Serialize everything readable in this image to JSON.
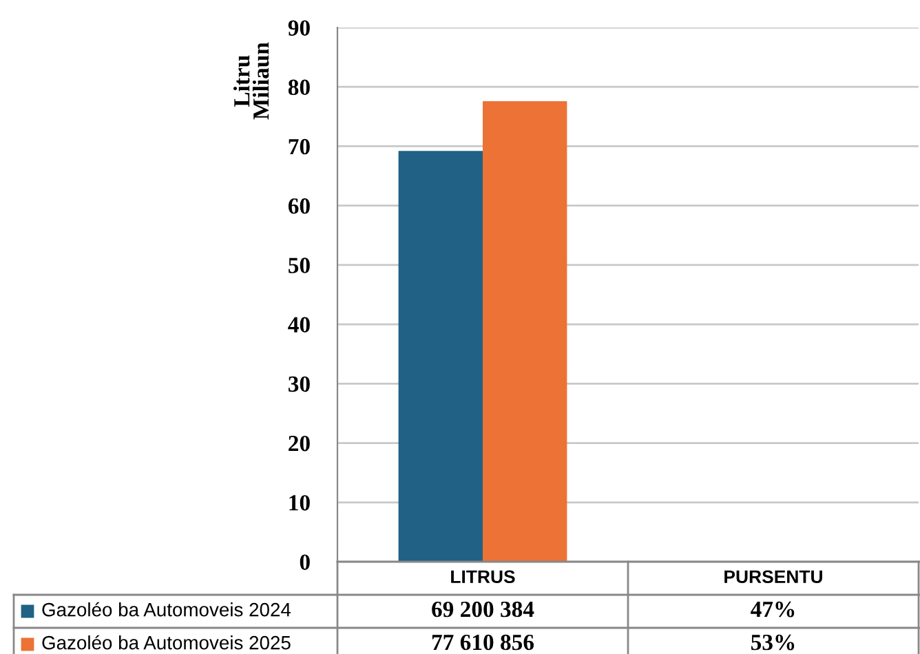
{
  "chart_data": {
    "type": "bar",
    "categories": [
      "LITRUS",
      "PURSENTU"
    ],
    "ylabel": "Litru\nMiliaun",
    "ylim": [
      0,
      90
    ],
    "yticks": [
      0,
      10,
      20,
      30,
      40,
      50,
      60,
      70,
      80,
      90
    ],
    "grid": "y",
    "legend": "bottom left",
    "series": [
      {
        "name": "Gazoléo ba Automoveis 2024",
        "color": "#206185",
        "values": [
          69.2,
          null
        ]
      },
      {
        "name": "Gazoléo ba Automoveis 2025",
        "color": "#ec7335",
        "values": [
          77.6,
          null
        ]
      }
    ],
    "annotations": [
      "69 200 384",
      "47%",
      "77 610 856",
      "53%"
    ]
  }
}
